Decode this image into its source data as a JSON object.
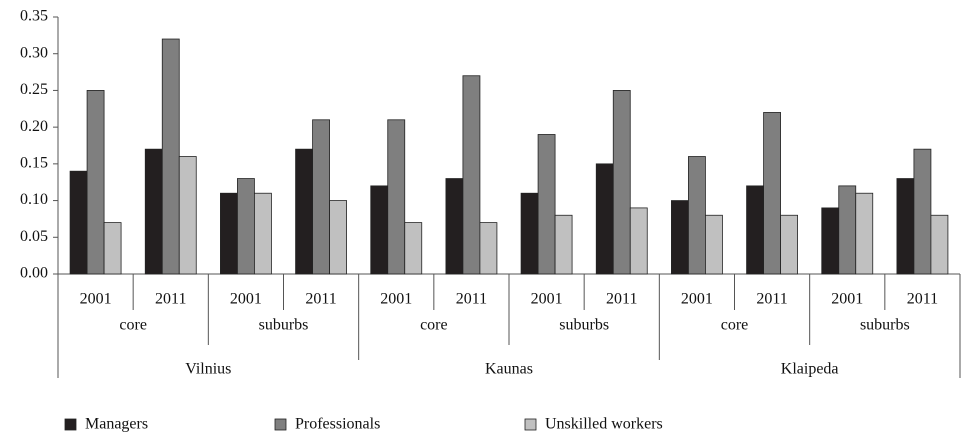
{
  "chart_data": {
    "type": "bar",
    "categories": [
      "2001",
      "2011",
      "2001",
      "2011",
      "2001",
      "2011",
      "2001",
      "2011",
      "2001",
      "2011",
      "2001",
      "2011"
    ],
    "subgroups": [
      "core",
      "suburbs",
      "core",
      "suburbs",
      "core",
      "suburbs"
    ],
    "groups": [
      "Vilnius",
      "Kaunas",
      "Klaipeda"
    ],
    "series": [
      {
        "name": "Managers",
        "color": "#231f20",
        "values": [
          0.14,
          0.17,
          0.11,
          0.17,
          0.12,
          0.13,
          0.11,
          0.15,
          0.1,
          0.12,
          0.09,
          0.13
        ]
      },
      {
        "name": "Professionals",
        "color": "#7f7f7f",
        "values": [
          0.25,
          0.32,
          0.13,
          0.21,
          0.21,
          0.27,
          0.19,
          0.25,
          0.16,
          0.22,
          0.12,
          0.17
        ]
      },
      {
        "name": "Unskilled workers",
        "color": "#c0c0c0",
        "values": [
          0.07,
          0.16,
          0.11,
          0.1,
          0.07,
          0.07,
          0.08,
          0.09,
          0.08,
          0.08,
          0.11,
          0.08
        ]
      }
    ],
    "ylim": [
      0,
      0.35
    ],
    "yticks": [
      {
        "value": 0,
        "label": "0.00"
      },
      0.05,
      {
        "value": 0.1,
        "label": "0.10"
      },
      0.15,
      {
        "value": 0.2,
        "label": "0.20"
      },
      0.25,
      {
        "value": 0.3,
        "label": "0.30"
      },
      0.35
    ],
    "grid": false,
    "legend": "bottom"
  }
}
